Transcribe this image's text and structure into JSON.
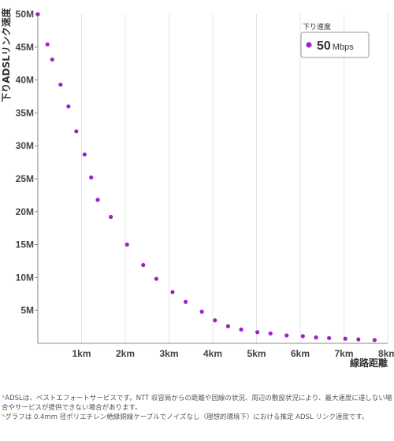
{
  "chart_data": {
    "type": "scatter",
    "ylabel": "下りADSLリンク速度",
    "xlabel": "線路距離",
    "xlim": [
      0,
      8
    ],
    "ylim": [
      0,
      50
    ],
    "x_ticks": [
      {
        "value": 1,
        "label": "1km"
      },
      {
        "value": 2,
        "label": "2km"
      },
      {
        "value": 3,
        "label": "3km"
      },
      {
        "value": 4,
        "label": "4km"
      },
      {
        "value": 5,
        "label": "5km"
      },
      {
        "value": 6,
        "label": "6km"
      },
      {
        "value": 7,
        "label": "7km"
      },
      {
        "value": 8,
        "label": "8km"
      }
    ],
    "y_ticks": [
      {
        "value": 5,
        "label": "5M"
      },
      {
        "value": 10,
        "label": "10M"
      },
      {
        "value": 15,
        "label": "15M"
      },
      {
        "value": 20,
        "label": "20M"
      },
      {
        "value": 25,
        "label": "25M"
      },
      {
        "value": 30,
        "label": "30M"
      },
      {
        "value": 35,
        "label": "35M"
      },
      {
        "value": 40,
        "label": "40M"
      },
      {
        "value": 45,
        "label": "45M"
      },
      {
        "value": 50,
        "label": "50M"
      }
    ],
    "grid": "vertical",
    "point_color": "#a020c8",
    "legend": {
      "title": "下り速度",
      "value": "50",
      "unit": "Mbps",
      "position": "top-right"
    },
    "points": [
      {
        "x": 0.0,
        "y": 50.0
      },
      {
        "x": 0.22,
        "y": 45.4
      },
      {
        "x": 0.33,
        "y": 43.1
      },
      {
        "x": 0.52,
        "y": 39.3
      },
      {
        "x": 0.7,
        "y": 36.0
      },
      {
        "x": 0.88,
        "y": 32.2
      },
      {
        "x": 1.07,
        "y": 28.7
      },
      {
        "x": 1.22,
        "y": 25.2
      },
      {
        "x": 1.37,
        "y": 21.8
      },
      {
        "x": 1.67,
        "y": 19.2
      },
      {
        "x": 2.04,
        "y": 15.0
      },
      {
        "x": 2.41,
        "y": 11.9
      },
      {
        "x": 2.71,
        "y": 9.8
      },
      {
        "x": 3.08,
        "y": 7.8
      },
      {
        "x": 3.38,
        "y": 6.3
      },
      {
        "x": 3.75,
        "y": 4.8
      },
      {
        "x": 4.05,
        "y": 3.5
      },
      {
        "x": 4.35,
        "y": 2.6
      },
      {
        "x": 4.65,
        "y": 2.1
      },
      {
        "x": 5.02,
        "y": 1.7
      },
      {
        "x": 5.32,
        "y": 1.5
      },
      {
        "x": 5.69,
        "y": 1.2
      },
      {
        "x": 6.06,
        "y": 1.1
      },
      {
        "x": 6.36,
        "y": 0.9
      },
      {
        "x": 6.66,
        "y": 0.8
      },
      {
        "x": 7.03,
        "y": 0.7
      },
      {
        "x": 7.33,
        "y": 0.6
      },
      {
        "x": 7.7,
        "y": 0.5
      }
    ]
  },
  "notes": [
    {
      "star": "*",
      "text": "ADSLは、ベストエフォートサービスです。NTT 収容局からの距離や回線の状況、周辺の敷設状況により、最大速度に達しない場合やサービスが提供できない場合があります。"
    },
    {
      "star": "*",
      "text": "グラフは 0.4mm 径ポリエチレン絶縁銅線ケーブルでノイズなし（理想的環境下）における推定 ADSL リンク速度です。"
    }
  ]
}
